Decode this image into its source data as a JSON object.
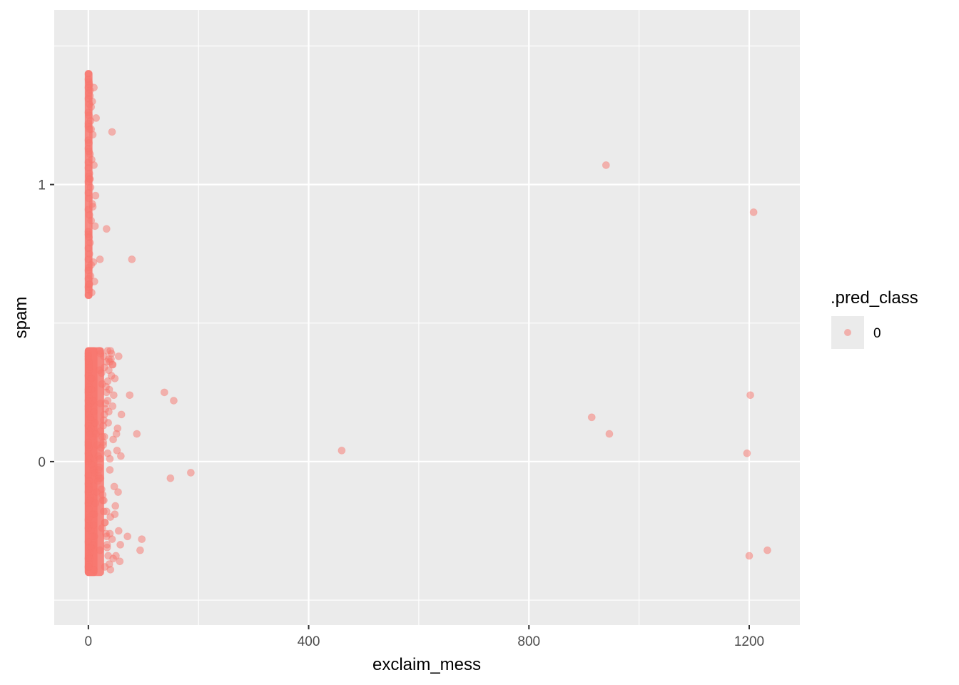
{
  "chart_data": {
    "type": "scatter",
    "xlabel": "exclaim_mess",
    "ylabel": "spam",
    "xlim": [
      -62,
      1292
    ],
    "ylim": [
      -0.59,
      1.63
    ],
    "x_ticks": [
      0,
      400,
      800,
      1200
    ],
    "x_tick_labels": [
      "0",
      "400",
      "800",
      "1200"
    ],
    "x_minor_ticks": [
      200,
      600,
      1000
    ],
    "y_ticks": [
      0,
      1
    ],
    "y_tick_labels": [
      "0",
      "1"
    ],
    "grid": true,
    "point_alpha": 0.5,
    "legend": {
      "title": ".pred_class",
      "position": "right",
      "entries": [
        {
          "label": "0",
          "color": "#F8766D"
        }
      ]
    },
    "series": [
      {
        "name": "0",
        "color": "#F8766D",
        "note_dense_band": "many additional points near x=0-60 are drawn as dense clusters",
        "x": [
          0,
          0,
          1,
          2,
          0,
          3,
          1,
          0,
          2,
          5,
          0,
          1,
          4,
          0,
          2,
          8,
          0,
          1,
          0,
          3,
          6,
          10,
          0,
          2,
          1,
          0,
          4,
          0,
          1,
          7,
          0,
          2,
          5,
          12,
          0,
          1,
          3,
          0,
          2,
          0,
          9,
          1,
          0,
          4,
          0,
          11,
          2,
          0,
          1,
          6,
          0,
          3,
          0,
          1,
          2,
          8,
          0,
          5,
          1,
          0,
          43,
          10,
          7,
          14,
          5,
          33,
          21,
          79,
          13,
          3,
          0,
          0,
          1,
          2,
          0,
          3,
          1,
          0,
          2,
          4,
          0,
          1,
          5,
          0,
          2,
          7,
          0,
          1,
          0,
          3,
          6,
          9,
          0,
          2,
          1,
          0,
          4,
          0,
          1,
          8,
          0,
          2,
          5,
          11,
          0,
          1,
          3,
          0,
          2,
          0,
          10,
          1,
          0,
          4,
          0,
          12,
          2,
          0,
          1,
          6,
          0,
          3,
          0,
          1,
          2,
          8,
          0,
          5,
          1,
          0,
          0,
          2,
          4,
          6,
          8,
          10,
          12,
          14,
          16,
          18,
          20,
          22,
          24,
          26,
          28,
          30,
          32,
          34,
          36,
          38,
          40,
          1,
          3,
          5,
          7,
          9,
          11,
          13,
          15,
          17,
          19,
          21,
          23,
          25,
          27,
          29,
          31,
          33,
          35,
          37,
          39,
          42,
          48,
          35,
          28,
          45,
          60,
          39,
          18,
          25,
          55,
          33,
          22,
          44,
          50,
          41,
          27,
          58,
          20,
          36,
          47,
          30,
          52,
          38,
          26,
          43,
          31,
          57,
          24,
          49,
          35,
          21,
          46,
          29,
          40,
          53,
          33,
          19,
          44,
          37,
          28,
          59,
          45,
          32,
          25,
          51,
          39,
          22,
          48,
          34,
          27,
          54,
          42,
          30,
          138,
          75,
          155,
          88,
          460,
          914,
          946,
          1202,
          1196,
          149,
          186,
          97,
          94,
          71,
          39,
          1200,
          1233,
          940,
          1208,
          28,
          35,
          40,
          22,
          33,
          44,
          55,
          29,
          20,
          37
        ],
        "y": [
          1.4,
          1.38,
          1.37,
          1.36,
          1.35,
          1.34,
          1.33,
          1.31,
          1.29,
          1.28,
          1.26,
          1.25,
          1.23,
          1.21,
          1.2,
          1.18,
          1.16,
          1.15,
          1.13,
          1.11,
          1.09,
          1.07,
          1.06,
          1.04,
          1.03,
          1.01,
          0.99,
          0.97,
          0.95,
          0.93,
          0.91,
          0.89,
          0.87,
          0.85,
          0.83,
          0.81,
          0.79,
          0.77,
          0.75,
          0.73,
          0.72,
          0.7,
          0.69,
          0.67,
          0.66,
          0.65,
          0.64,
          0.63,
          0.62,
          0.61,
          0.6,
          1.32,
          1.22,
          1.12,
          1.02,
          0.92,
          0.82,
          0.71,
          0.64,
          1.08,
          1.19,
          1.35,
          1.3,
          1.24,
          1.2,
          0.84,
          0.73,
          0.73,
          0.96,
          1.02,
          0.39,
          0.37,
          0.35,
          0.33,
          0.31,
          0.29,
          0.27,
          0.25,
          0.23,
          0.21,
          0.19,
          0.17,
          0.15,
          0.13,
          0.11,
          0.09,
          0.07,
          0.05,
          0.03,
          0.01,
          -0.01,
          -0.03,
          -0.05,
          -0.07,
          -0.09,
          -0.11,
          -0.13,
          -0.15,
          -0.17,
          -0.19,
          -0.21,
          -0.23,
          -0.25,
          -0.27,
          -0.29,
          -0.31,
          -0.33,
          -0.35,
          -0.37,
          -0.38,
          -0.39,
          0.36,
          0.26,
          0.16,
          0.06,
          -0.04,
          -0.14,
          -0.24,
          -0.34,
          0.3,
          0.2,
          0.1,
          0.0,
          -0.1,
          -0.2,
          -0.3,
          0.22,
          0.12,
          0.02,
          -0.08,
          0.38,
          0.34,
          0.3,
          0.26,
          0.22,
          0.18,
          0.14,
          0.1,
          0.06,
          0.02,
          -0.02,
          -0.06,
          -0.1,
          -0.14,
          -0.18,
          -0.22,
          -0.26,
          -0.3,
          -0.34,
          -0.37,
          -0.39,
          -0.38,
          -0.35,
          -0.31,
          -0.27,
          -0.23,
          -0.19,
          -0.15,
          -0.11,
          -0.07,
          -0.03,
          0.01,
          0.05,
          0.09,
          0.13,
          0.17,
          0.21,
          0.25,
          0.29,
          0.33,
          0.36,
          0.39,
          0.3,
          0.22,
          0.15,
          0.08,
          0.17,
          0.01,
          -0.05,
          0.28,
          -0.25,
          -0.18,
          0.11,
          0.2,
          -0.34,
          0.37,
          0.06,
          -0.3,
          0.33,
          0.14,
          -0.09,
          -0.22,
          0.04,
          0.26,
          -0.12,
          -0.28,
          0.19,
          -0.36,
          0.32,
          -0.16,
          0.03,
          -0.32,
          0.24,
          0.09,
          -0.2,
          0.12,
          -0.27,
          -0.06,
          0.35,
          0.18,
          -0.14,
          0.02,
          -0.35,
          0.27,
          -0.24,
          0.1,
          -0.03,
          0.21,
          -0.19,
          -0.31,
          0.07,
          -0.11,
          0.31,
          -0.38,
          0.25,
          0.24,
          0.22,
          0.1,
          0.04,
          0.16,
          0.1,
          0.24,
          0.03,
          -0.06,
          -0.04,
          -0.28,
          -0.32,
          -0.27,
          -0.26,
          -0.34,
          -0.32,
          1.07,
          0.9,
          0.38,
          0.4,
          0.4,
          0.39,
          0.36,
          0.35,
          0.38,
          0.34,
          0.4,
          0.37
        ]
      }
    ]
  }
}
